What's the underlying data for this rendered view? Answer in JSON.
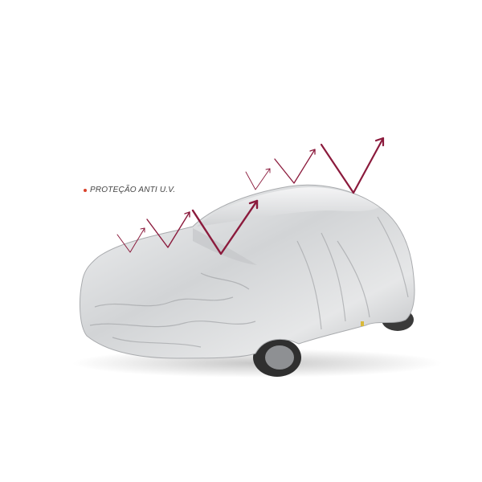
{
  "product_label": "PROTEÇÃO ANTI U.V.",
  "colors": {
    "background": "#ffffff",
    "arrow": "#8b1a3c",
    "bullet": "#d9422b",
    "cover": "#d7d8da",
    "tire": "#333333"
  },
  "icons": {
    "bullet": "dot-icon",
    "arrows": "uv-reflection-arrow-icon"
  }
}
